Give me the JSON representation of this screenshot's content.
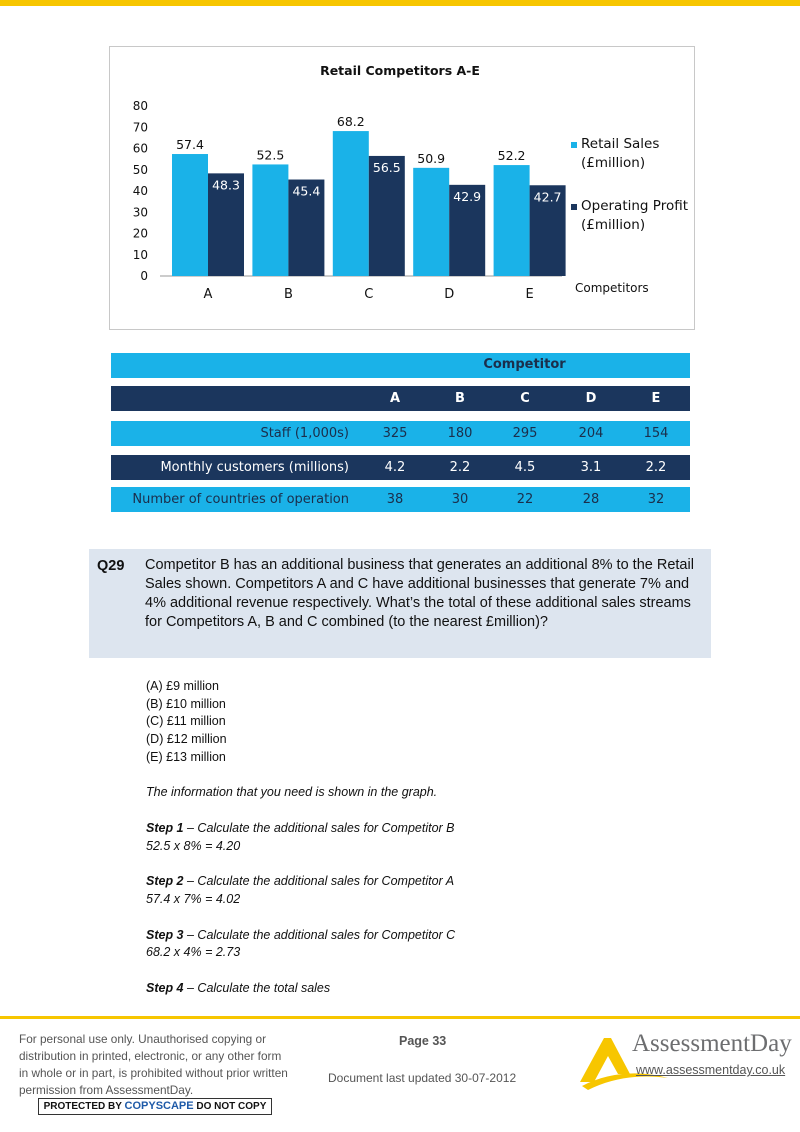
{
  "chart_data": {
    "type": "bar",
    "title": "Retail Competitors A-E",
    "categories": [
      "A",
      "B",
      "C",
      "D",
      "E"
    ],
    "series": [
      {
        "name": "Retail Sales (£million)",
        "values": [
          57.4,
          52.5,
          68.2,
          50.9,
          52.2
        ],
        "color": "#1ab2e8"
      },
      {
        "name": "Operating Profit (£million)",
        "values": [
          48.3,
          45.4,
          56.5,
          42.9,
          42.7
        ],
        "color": "#1b365d"
      }
    ],
    "legend": [
      {
        "line1": "Retail Sales",
        "line2": "(£million)"
      },
      {
        "line1": "Operating Profit",
        "line2": "(£million)"
      }
    ],
    "xlabel": "Competitors",
    "ylabel": "",
    "ylim": [
      0,
      80
    ],
    "yticks": [
      "0",
      "10",
      "20",
      "30",
      "40",
      "50",
      "60",
      "70",
      "80"
    ],
    "legend_position": "right"
  },
  "table": {
    "group_header": "Competitor",
    "columns": [
      "A",
      "B",
      "C",
      "D",
      "E"
    ],
    "rows": [
      {
        "label": "Staff (1,000s)",
        "values": [
          "325",
          "180",
          "295",
          "204",
          "154"
        ]
      },
      {
        "label": "Monthly customers (millions)",
        "values": [
          "4.2",
          "2.2",
          "4.5",
          "3.1",
          "2.2"
        ]
      },
      {
        "label": "Number of countries of operation",
        "values": [
          "38",
          "30",
          "22",
          "28",
          "32"
        ]
      }
    ]
  },
  "question": {
    "number": "Q29",
    "text": "Competitor B has an additional business that generates an additional 8% to the Retail Sales shown. Competitors A and C have additional businesses that generate 7% and 4% additional revenue respectively. What’s the total of these additional sales streams for Competitors A, B and C combined (to the nearest £million)?"
  },
  "answers": [
    "(A) £9 million",
    "(B) £10 million",
    "(C) £11 million",
    "(D) £12 million",
    "(E) £13 million"
  ],
  "explanation": {
    "intro": "The information that you need is shown in the graph.",
    "steps": [
      {
        "label": "Step 1",
        "text": " – Calculate the additional sales for Competitor B",
        "calc": "52.5 x 8% = 4.20"
      },
      {
        "label": "Step 2",
        "text": " – Calculate the additional sales for Competitor A",
        "calc": "57.4 x 7% = 4.02"
      },
      {
        "label": "Step 3",
        "text": " – Calculate the additional sales for Competitor C",
        "calc": "68.2 x 4% = 2.73"
      },
      {
        "label": "Step 4",
        "text": " – Calculate the total sales",
        "calc": ""
      }
    ]
  },
  "footer": {
    "notice": "For personal use only. Unauthorised copying or distribution in printed, electronic, or any other form in whole or in part, is prohibited without prior written permission from AssessmentDay.",
    "copyscape_pre": "PROTECTED BY ",
    "copyscape_brand": "COPYSCAPE",
    "copyscape_post": " DO NOT COPY",
    "page": "Page 33",
    "updated": "Document last updated 30-07-2012",
    "brand": "AssessmentDay",
    "url": "www.assessmentday.co.uk",
    "colors": {
      "accent": "#f7c600",
      "logo_grey": "#6d6e70"
    }
  }
}
